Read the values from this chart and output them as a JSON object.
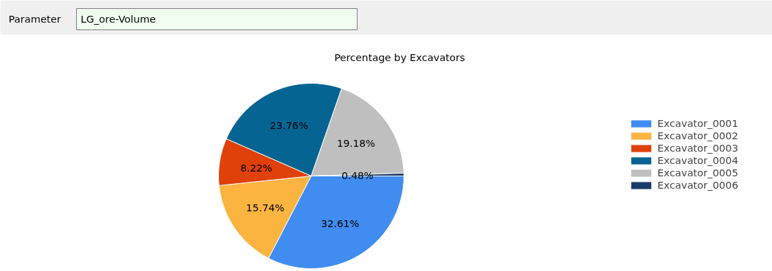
{
  "chart_data": {
    "type": "pie",
    "title": "Percentage by Excavators",
    "annotations": [
      "Parameter",
      "LG_ore-Volume"
    ],
    "categories": [
      "Excavator_0001",
      "Excavator_0002",
      "Excavator_0003",
      "Excavator_0004",
      "Excavator_0005",
      "Excavator_0006"
    ],
    "values": [
      32.61,
      15.74,
      8.22,
      23.76,
      19.18,
      0.48
    ],
    "value_labels": [
      "32.61%",
      "15.74%",
      "8.22%",
      "23.76%",
      "19.18%",
      "0.48%"
    ],
    "colors": [
      "#418cf0",
      "#fcb441",
      "#e0400a",
      "#056492",
      "#bfbfbf",
      "#1a3b69"
    ],
    "legend": "right"
  }
}
